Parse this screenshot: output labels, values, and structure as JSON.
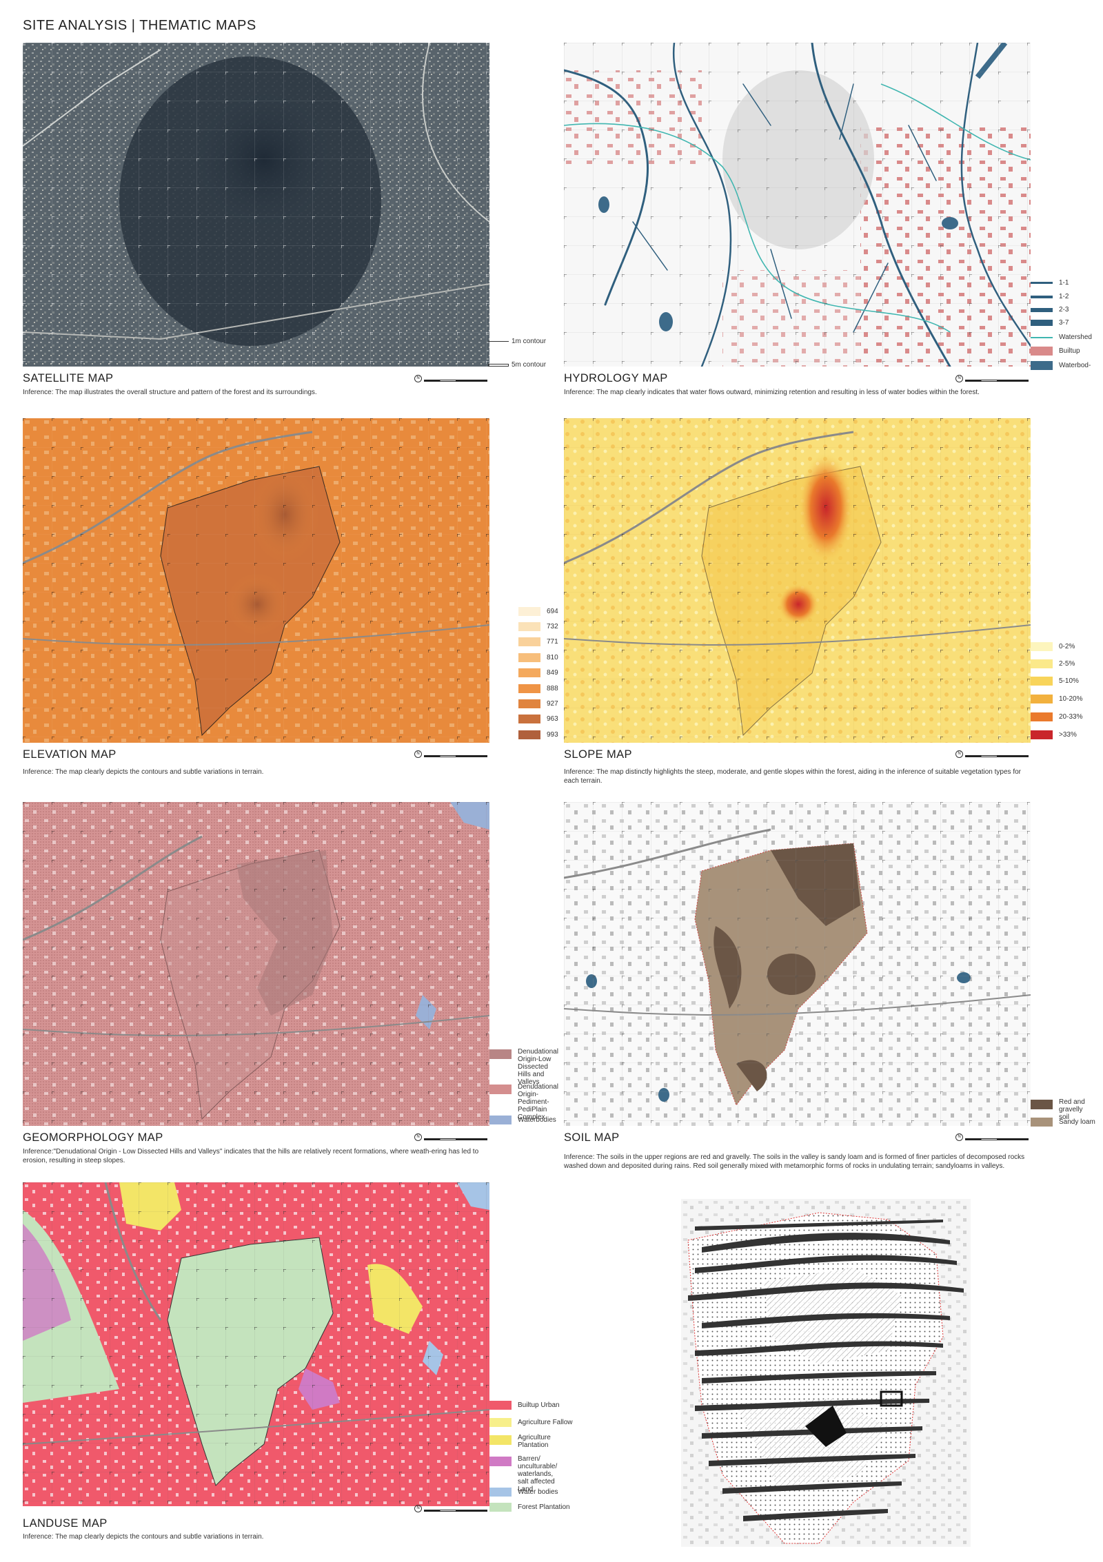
{
  "page": {
    "title": "SITE ANALYSIS | THEMATIC MAPS"
  },
  "satellite": {
    "title": "SATELLITE MAP",
    "inference": "Inference: The map illustrates the overall structure and pattern of the forest and its surroundings.",
    "legend": [
      {
        "label": "1m contour"
      },
      {
        "label": "5m contour"
      }
    ]
  },
  "hydrology": {
    "title": "HYDROLOGY MAP",
    "inference": "Inference: The map clearly indicates that water flows outward, minimizing retention and resulting in less of water bodies within the forest.",
    "legend": [
      {
        "label": "1-1",
        "color": "#2f5f7e"
      },
      {
        "label": "1-2",
        "color": "#2f5f7e"
      },
      {
        "label": "2-3",
        "color": "#2f5f7e"
      },
      {
        "label": "3-7",
        "color": "#2f5f7e"
      },
      {
        "label": "Watershed",
        "color": "#3fb6b0"
      },
      {
        "label": "Builtup",
        "color": "#d98a8a"
      },
      {
        "label": "Waterbod-",
        "color": "#3d6b8a"
      }
    ]
  },
  "elevation": {
    "title": "ELEVATION  MAP",
    "inference": "Inference: The map clearly depicts the contours and subtle variations in terrain.",
    "legend": [
      {
        "label": "694",
        "color": "#fdf0d6"
      },
      {
        "label": "732",
        "color": "#fbe2b8"
      },
      {
        "label": "771",
        "color": "#f9d19a"
      },
      {
        "label": "810",
        "color": "#f7be7b"
      },
      {
        "label": "849",
        "color": "#f4a95d"
      },
      {
        "label": "888",
        "color": "#ef9446"
      },
      {
        "label": "927",
        "color": "#e0843f"
      },
      {
        "label": "963",
        "color": "#c9713d"
      },
      {
        "label": "993",
        "color": "#b0603c"
      }
    ]
  },
  "slope": {
    "title": "SLOPE MAP",
    "inference": "Inference: The map distinctly highlights the steep, moderate, and gentle slopes within the forest, aiding in the inference of suitable vegetation types for each terrain.",
    "legend": [
      {
        "label": "0-2%",
        "color": "#fdf5bd"
      },
      {
        "label": "2-5%",
        "color": "#fbe98a"
      },
      {
        "label": "5-10%",
        "color": "#f8d45a"
      },
      {
        "label": "10-20%",
        "color": "#f2b13e"
      },
      {
        "label": "20-33%",
        "color": "#ea7a2c"
      },
      {
        "label": ">33%",
        "color": "#c9262b"
      }
    ]
  },
  "geomorphology": {
    "title": "GEOMORPHOLOGY MAP",
    "inference": "Inference:\"Denudational Origin - Low Dissected Hills and Valleys\" indicates that the hills are relatively recent formations, where weath-ering has led to erosion, resulting in steep slopes.",
    "legend": [
      {
        "label": "Denudational Origin-Low Dissected Hills and Valleys",
        "color": "#b88585"
      },
      {
        "label": "Denudational Origin-Pediment-PediPlain Complex",
        "color": "#d48e8e"
      },
      {
        "label": "Waterbodies",
        "color": "#9ab0d6"
      }
    ]
  },
  "soil": {
    "title": "SOIL MAP",
    "inference": "Inference: The soils in the upper regions are red and gravelly. The soils in the valley is sandy loam and is formed of finer particles of decomposed rocks washed down and deposited during rains. Red soil generally mixed with metamorphic forms of rocks in undulating terrain; sandyloams in valleys.",
    "legend": [
      {
        "label": "Red and gravelly soil",
        "color": "#6b5646"
      },
      {
        "label": "Sandy loam",
        "color": "#a8927a"
      }
    ]
  },
  "landuse": {
    "title": "LANDUSE MAP",
    "inference": "Inference: The map clearly depicts the contours and subtle variations in terrain.",
    "legend": [
      {
        "label": "Builtup Urban",
        "color": "#f0596b"
      },
      {
        "label": "Agriculture Fallow",
        "color": "#f7ef8a"
      },
      {
        "label": "Agriculture Plantation",
        "color": "#f3e567"
      },
      {
        "label": "Barren/ unculturable/ waterlands, salt affected Land",
        "color": "#d07ac4"
      },
      {
        "label": "Water bodies",
        "color": "#a6c4e6"
      },
      {
        "label": "Forest Plantation",
        "color": "#c4e3bd"
      }
    ]
  }
}
